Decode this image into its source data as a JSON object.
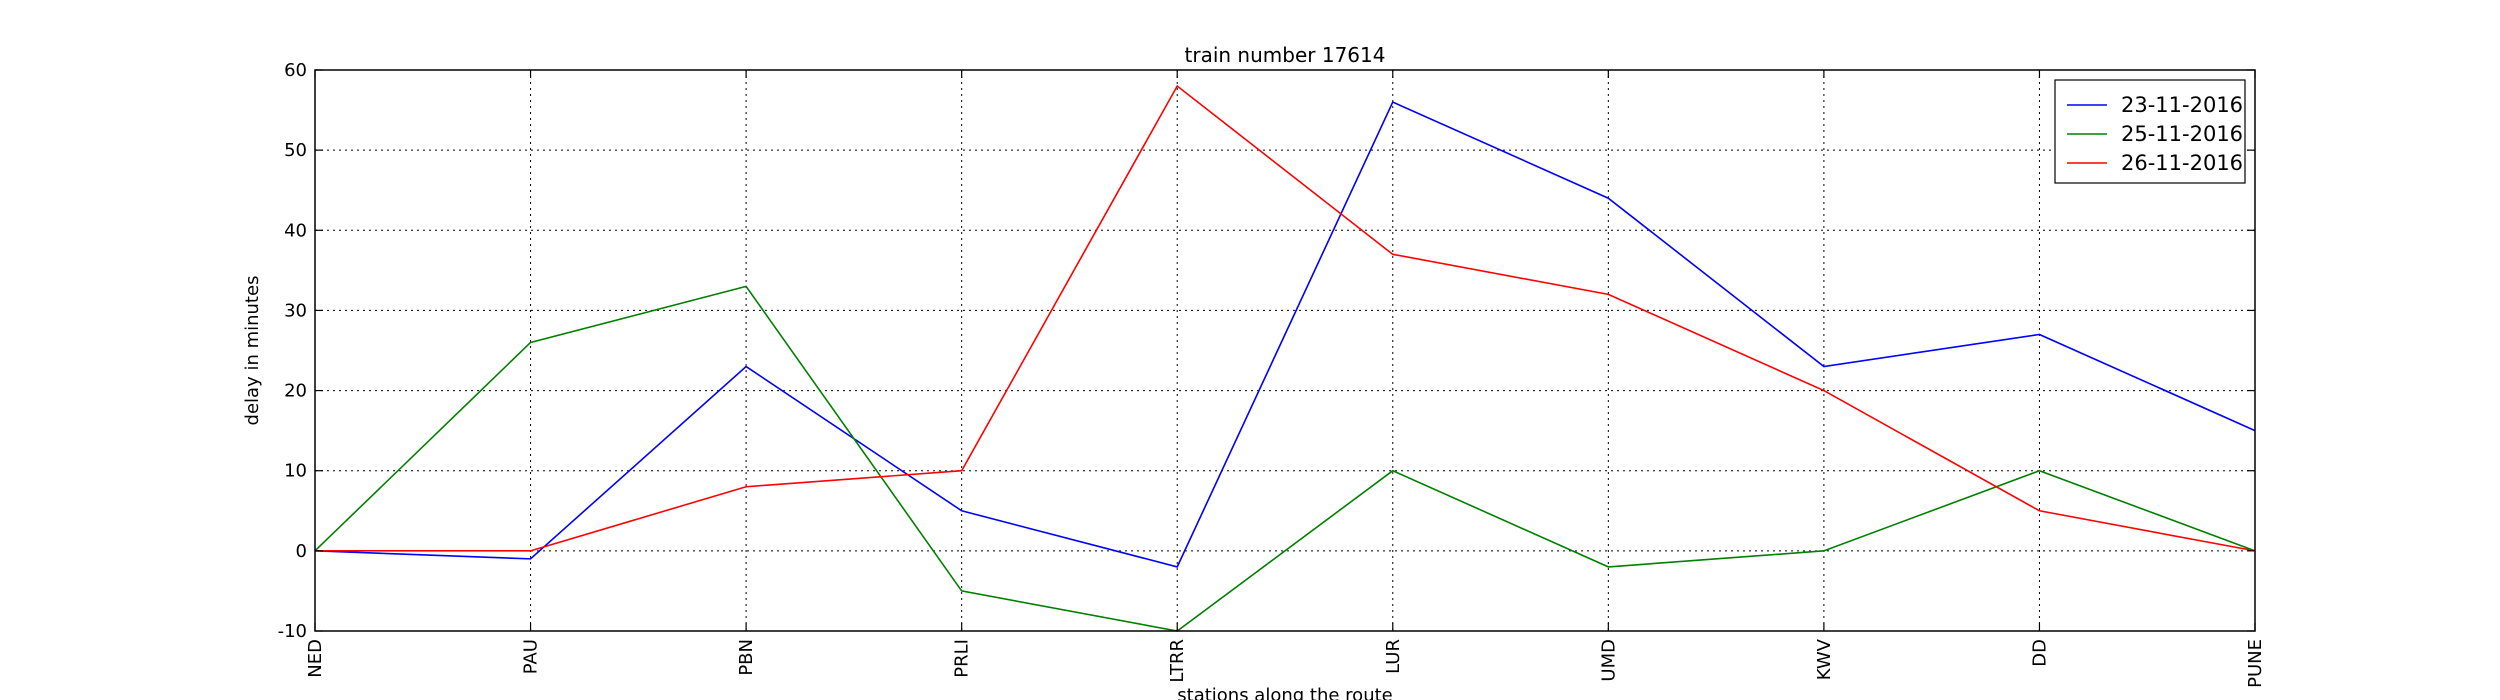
{
  "chart_data": {
    "type": "line",
    "title": "train number 17614",
    "xlabel": "stations along the route",
    "ylabel": "delay in minutes",
    "categories": [
      "NED",
      "PAU",
      "PBN",
      "PRLI",
      "LTRR",
      "LUR",
      "UMD",
      "KWV",
      "DD",
      "PUNE"
    ],
    "ylim": [
      -10,
      60
    ],
    "yticks": [
      -10,
      0,
      10,
      20,
      30,
      40,
      50,
      60
    ],
    "grid": true,
    "legend_position": "top-right",
    "series": [
      {
        "name": "23-11-2016",
        "color": "#0000ff",
        "values": [
          0,
          -1,
          23,
          5,
          -2,
          56,
          44,
          23,
          27,
          15
        ]
      },
      {
        "name": "25-11-2016",
        "color": "#008000",
        "values": [
          0,
          26,
          33,
          -5,
          -10,
          10,
          -2,
          0,
          10,
          0
        ]
      },
      {
        "name": "26-11-2016",
        "color": "#ff0000",
        "values": [
          0,
          0,
          8,
          10,
          58,
          37,
          32,
          20,
          5,
          0
        ]
      }
    ]
  }
}
